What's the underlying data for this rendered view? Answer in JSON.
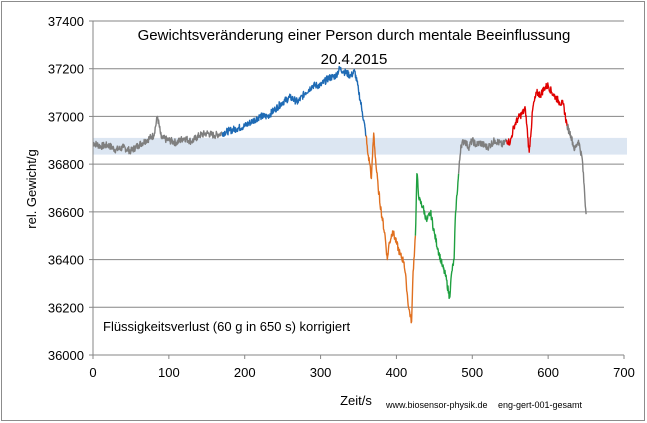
{
  "chart_data": {
    "type": "line",
    "title": "Gewichtsveränderung einer Person durch mentale Beeinflussung",
    "subtitle": "20.4.2015",
    "xlabel": "Zeit/s",
    "ylabel": "rel. Gewicht/g",
    "xlim": [
      0,
      700
    ],
    "ylim": [
      36000,
      37400
    ],
    "xticks": [
      "0",
      "100",
      "200",
      "300",
      "400",
      "500",
      "600",
      "700"
    ],
    "yticks": [
      "36000",
      "36200",
      "36400",
      "36600",
      "36800",
      "37000",
      "37200",
      "37400"
    ],
    "grid": true,
    "annotation": "Flüssigkeitsverlust (60 g in 650 s) korrigiert",
    "footer_left": "www.biosensor-physik.de",
    "footer_right": "eng-gert-001-gesamt",
    "band": {
      "y_from": 36840,
      "y_to": 36910,
      "color": "#dce6f2"
    },
    "series": [
      {
        "color": "#7f7f7f",
        "points": [
          [
            0,
            36890
          ],
          [
            10,
            36875
          ],
          [
            20,
            36880
          ],
          [
            30,
            36860
          ],
          [
            40,
            36870
          ],
          [
            50,
            36855
          ],
          [
            60,
            36880
          ],
          [
            70,
            36900
          ],
          [
            80,
            36920
          ],
          [
            85,
            37000
          ],
          [
            90,
            36910
          ],
          [
            100,
            36900
          ],
          [
            110,
            36890
          ],
          [
            120,
            36910
          ],
          [
            130,
            36895
          ],
          [
            140,
            36920
          ],
          [
            150,
            36930
          ],
          [
            160,
            36920
          ],
          [
            170,
            36930
          ]
        ]
      },
      {
        "color": "#1f6bb5",
        "points": [
          [
            170,
            36930
          ],
          [
            180,
            36940
          ],
          [
            190,
            36950
          ],
          [
            200,
            36960
          ],
          [
            210,
            36980
          ],
          [
            220,
            37000
          ],
          [
            230,
            37000
          ],
          [
            240,
            37030
          ],
          [
            250,
            37060
          ],
          [
            260,
            37080
          ],
          [
            270,
            37060
          ],
          [
            280,
            37100
          ],
          [
            290,
            37130
          ],
          [
            300,
            37130
          ],
          [
            310,
            37160
          ],
          [
            320,
            37170
          ],
          [
            325,
            37200
          ],
          [
            330,
            37190
          ],
          [
            340,
            37170
          ],
          [
            345,
            37190
          ],
          [
            350,
            37110
          ],
          [
            355,
            37020
          ],
          [
            360,
            36920
          ]
        ]
      },
      {
        "color": "#e07020",
        "points": [
          [
            360,
            36920
          ],
          [
            362,
            36850
          ],
          [
            365,
            36800
          ],
          [
            367,
            36740
          ],
          [
            370,
            36930
          ],
          [
            373,
            36800
          ],
          [
            376,
            36700
          ],
          [
            380,
            36600
          ],
          [
            385,
            36500
          ],
          [
            388,
            36400
          ],
          [
            390,
            36460
          ],
          [
            395,
            36520
          ],
          [
            400,
            36470
          ],
          [
            405,
            36420
          ],
          [
            410,
            36390
          ],
          [
            413,
            36300
          ],
          [
            416,
            36200
          ],
          [
            420,
            36140
          ],
          [
            422,
            36350
          ],
          [
            425,
            36500
          ]
        ]
      },
      {
        "color": "#1fa040",
        "points": [
          [
            425,
            36500
          ],
          [
            427,
            36760
          ],
          [
            430,
            36650
          ],
          [
            435,
            36620
          ],
          [
            440,
            36560
          ],
          [
            445,
            36600
          ],
          [
            450,
            36510
          ],
          [
            455,
            36440
          ],
          [
            460,
            36380
          ],
          [
            465,
            36330
          ],
          [
            470,
            36240
          ],
          [
            473,
            36350
          ],
          [
            476,
            36400
          ],
          [
            478,
            36600
          ],
          [
            482,
            36760
          ]
        ]
      },
      {
        "color": "#7f7f7f",
        "points": [
          [
            482,
            36760
          ],
          [
            485,
            36880
          ],
          [
            490,
            36900
          ],
          [
            495,
            36870
          ],
          [
            500,
            36900
          ],
          [
            505,
            36880
          ],
          [
            510,
            36890
          ],
          [
            520,
            36870
          ],
          [
            530,
            36900
          ],
          [
            540,
            36880
          ],
          [
            545,
            36900
          ]
        ]
      },
      {
        "color": "#e00000",
        "points": [
          [
            545,
            36900
          ],
          [
            550,
            36890
          ],
          [
            555,
            36960
          ],
          [
            560,
            36990
          ],
          [
            565,
            37010
          ],
          [
            570,
            37030
          ],
          [
            575,
            36850
          ],
          [
            580,
            37040
          ],
          [
            585,
            37100
          ],
          [
            590,
            37090
          ],
          [
            595,
            37120
          ],
          [
            600,
            37130
          ],
          [
            605,
            37100
          ],
          [
            610,
            37080
          ],
          [
            615,
            37060
          ],
          [
            620,
            37050
          ],
          [
            625,
            36960
          ]
        ]
      },
      {
        "color": "#7f7f7f",
        "points": [
          [
            625,
            36960
          ],
          [
            630,
            36920
          ],
          [
            635,
            36860
          ],
          [
            640,
            36900
          ],
          [
            645,
            36820
          ],
          [
            650,
            36590
          ]
        ]
      }
    ]
  }
}
